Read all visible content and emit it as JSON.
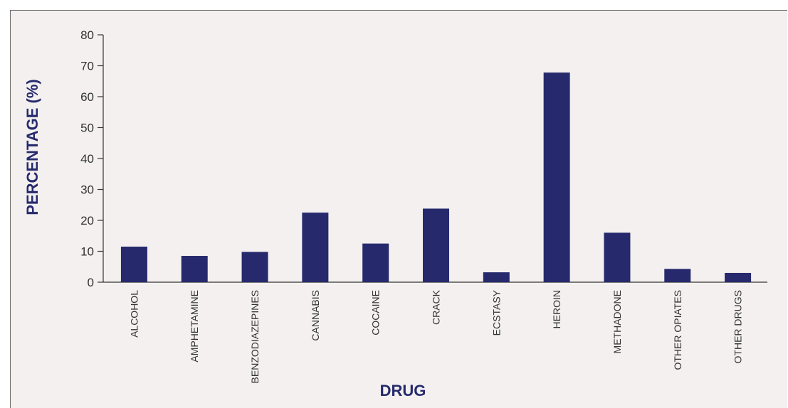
{
  "chart_data": {
    "type": "bar",
    "title": "",
    "xlabel": "DRUG",
    "ylabel": "PERCENTAGE (%)",
    "categories": [
      "ALCOHOL",
      "AMPHETAMINE",
      "BENZODIAZEPINES",
      "CANNABIS",
      "COCAINE",
      "CRACK",
      "ECSTASY",
      "HEROIN",
      "METHADONE",
      "OTHER OPIATES",
      "OTHER DRUGS"
    ],
    "values": [
      11.5,
      8.5,
      9.8,
      22.5,
      12.5,
      23.8,
      3.2,
      67.8,
      16,
      4.3,
      3
    ],
    "ylim": [
      0,
      80
    ],
    "yticks": [
      0,
      10,
      20,
      30,
      40,
      50,
      60,
      70,
      80
    ],
    "grid": false,
    "colors": {
      "bar": "#262a6d",
      "axis_title": "#262a6d",
      "axis": "#333333",
      "background": "#f3f0ef"
    }
  }
}
